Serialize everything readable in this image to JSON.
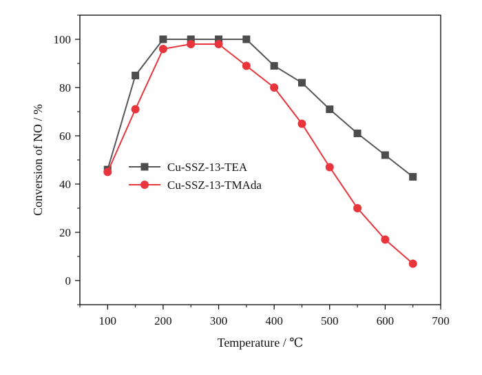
{
  "chart_data": {
    "type": "line",
    "xlabel": "Temperature / ℃",
    "ylabel": "Conversion of NO / %",
    "xlim": [
      50,
      700
    ],
    "ylim": [
      -10,
      110
    ],
    "xticks": [
      100,
      200,
      300,
      400,
      500,
      600,
      700
    ],
    "yticks": [
      0,
      20,
      40,
      60,
      80,
      100
    ],
    "x_minor_step": 50,
    "y_minor_step": 10,
    "grid": false,
    "legend_position": "center-left",
    "series": [
      {
        "name": "Cu-SSZ-13-TEA",
        "marker": "square",
        "line_color": "#555555",
        "marker_color": "#4d4d4d",
        "x": [
          100,
          150,
          200,
          250,
          300,
          350,
          400,
          450,
          500,
          550,
          600,
          650
        ],
        "y": [
          46,
          85,
          100,
          100,
          100,
          100,
          89,
          82,
          71,
          61,
          52,
          43
        ]
      },
      {
        "name": "Cu-SSZ-13-TMAda",
        "marker": "circle",
        "line_color": "#e8343b",
        "marker_color": "#e8343b",
        "x": [
          100,
          150,
          200,
          250,
          300,
          350,
          400,
          450,
          500,
          550,
          600,
          650
        ],
        "y": [
          45,
          71,
          96,
          98,
          98,
          89,
          80,
          65,
          47,
          30,
          17,
          7
        ]
      }
    ]
  }
}
